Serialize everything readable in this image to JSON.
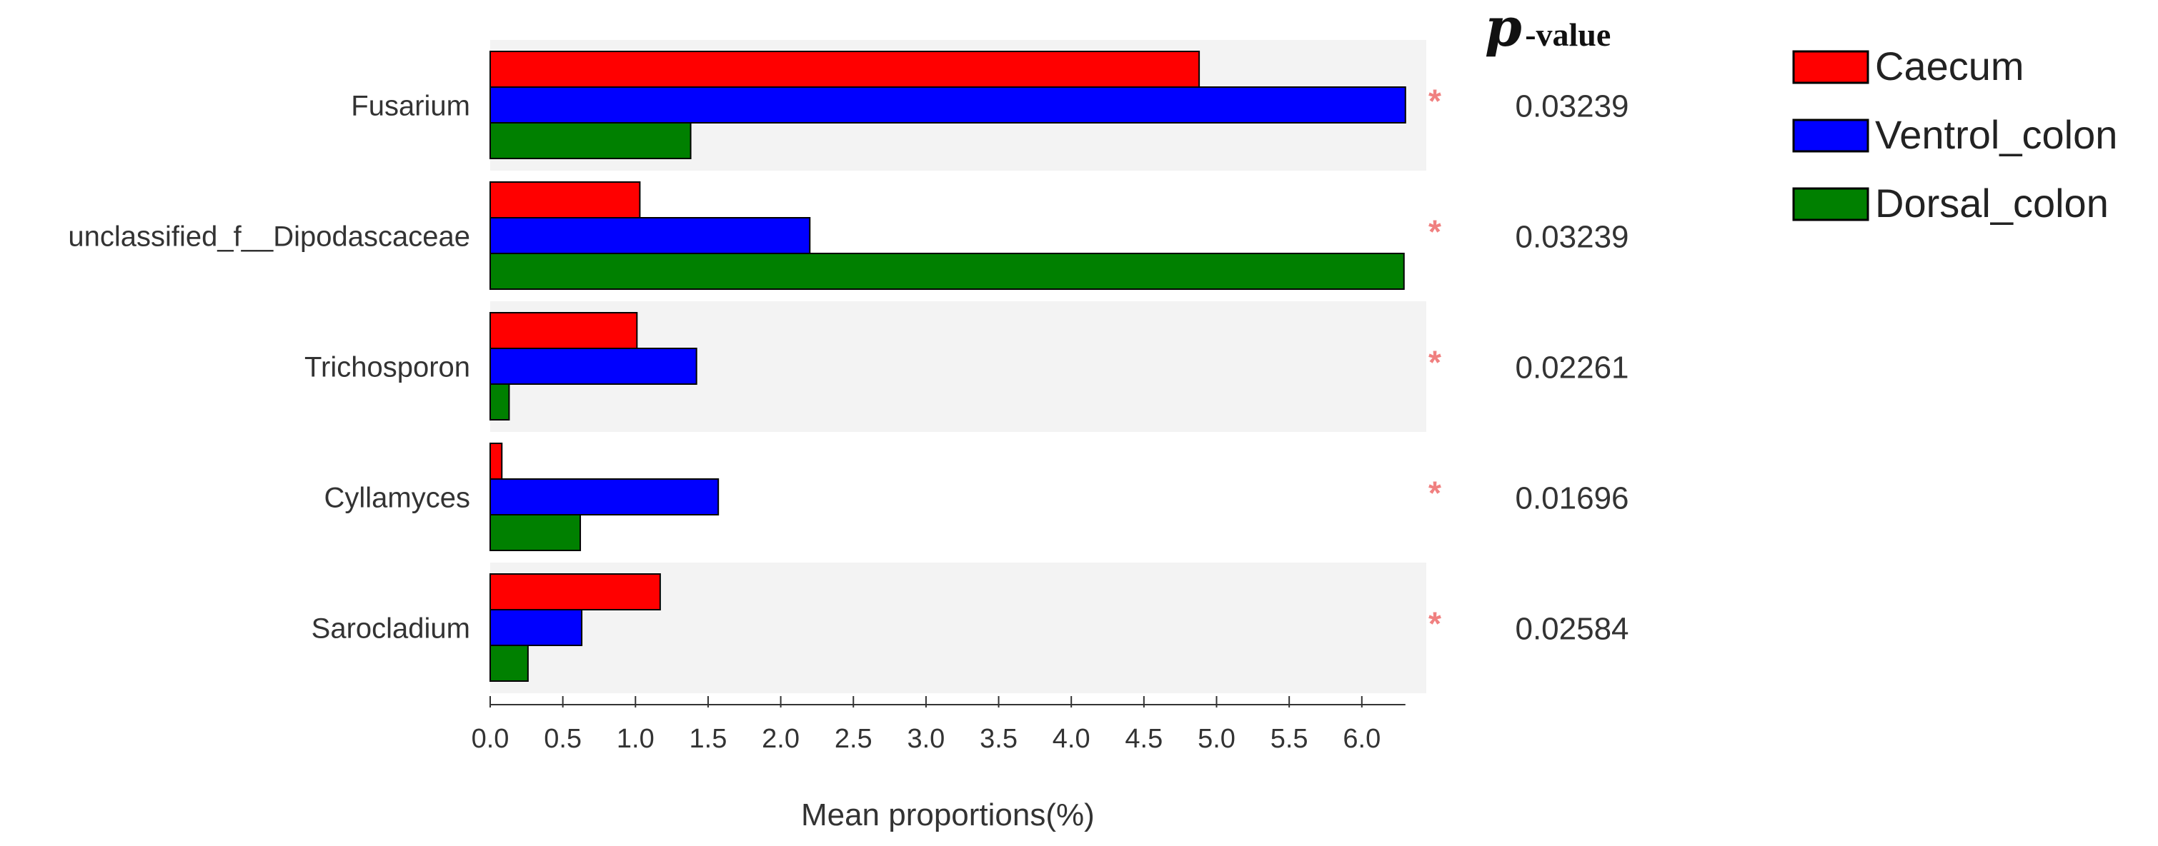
{
  "chart_data": {
    "type": "bar",
    "orientation": "horizontal",
    "categories": [
      "Fusarium",
      "unclassified_f__Dipodascaceae",
      "Trichosporon",
      "Cyllamyces",
      "Sarocladium"
    ],
    "series": [
      {
        "name": "Caecum",
        "color": "#ff0000",
        "values": [
          4.88,
          1.03,
          1.01,
          0.08,
          1.17
        ]
      },
      {
        "name": "Ventrol_colon",
        "color": "#0000ff",
        "values": [
          6.3,
          2.2,
          1.42,
          1.57,
          0.63
        ]
      },
      {
        "name": "Dorsal_colon",
        "color": "#008000",
        "values": [
          1.38,
          6.29,
          0.13,
          0.62,
          0.26
        ]
      }
    ],
    "xlabel": "Mean proportions(%)",
    "ylabel": "",
    "xlim": [
      0,
      6.4
    ],
    "xticks": [
      "0.0",
      "0.5",
      "1.0",
      "1.5",
      "2.0",
      "2.5",
      "3.0",
      "3.5",
      "4.0",
      "4.5",
      "5.0",
      "5.5",
      "6.0"
    ],
    "pvalue_header": {
      "symbol": "p",
      "suffix": "-value"
    },
    "pvalues": [
      "0.03239",
      "0.03239",
      "0.02261",
      "0.01696",
      "0.02584"
    ],
    "significance_marker": "*",
    "legend_position": "top-right",
    "band_color": "#f3f3f3"
  }
}
